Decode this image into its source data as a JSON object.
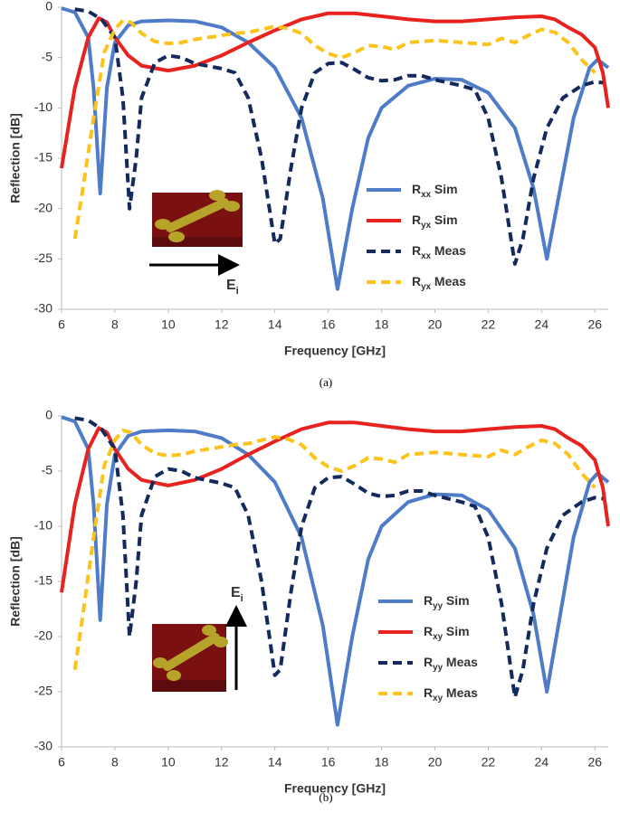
{
  "chart_data": [
    {
      "type": "line",
      "caption": "(a)",
      "x_label": "Frequency [GHz]",
      "y_label": "Reflection [dB]",
      "annotation": "Ei",
      "xlim": [
        6,
        26.5
      ],
      "xticks": [
        6,
        8,
        10,
        12,
        14,
        16,
        18,
        20,
        22,
        24,
        26
      ],
      "ylim": [
        -30,
        0
      ],
      "yticks": [
        0,
        -5,
        -10,
        -15,
        -20,
        -25,
        -30
      ],
      "legend": "center-right",
      "series": [
        {
          "name": "Rxx Sim",
          "color": "#4f7cc8",
          "dashed": false,
          "x": [
            6,
            6.5,
            7,
            7.2,
            7.45,
            7.7,
            8,
            8.5,
            9,
            10,
            11,
            12,
            13,
            14,
            15,
            15.8,
            16.35,
            16.9,
            17.5,
            18,
            19,
            20,
            21,
            22,
            23,
            23.7,
            24.2,
            24.7,
            25.2,
            25.8,
            26.1,
            26.5
          ],
          "values": [
            -0.1,
            -0.5,
            -3,
            -8,
            -18.5,
            -8,
            -3.5,
            -1.8,
            -1.4,
            -1.3,
            -1.4,
            -2,
            -3.5,
            -6,
            -11,
            -19,
            -28,
            -20,
            -13,
            -10,
            -7.8,
            -7.1,
            -7.2,
            -8.5,
            -12,
            -18,
            -25,
            -18,
            -11,
            -6,
            -5.2,
            -6
          ]
        },
        {
          "name": "Ryx Sim",
          "color": "#e8221e",
          "dashed": false,
          "x": [
            6,
            6.5,
            7,
            7.4,
            7.7,
            8,
            8.5,
            9,
            10,
            11,
            12,
            13,
            14,
            15,
            16,
            17,
            18,
            19,
            20,
            21,
            22,
            23,
            24,
            24.5,
            25,
            25.5,
            26,
            26.3,
            26.5
          ],
          "values": [
            -16,
            -8,
            -3,
            -1.1,
            -1.5,
            -3,
            -4.8,
            -5.8,
            -6.3,
            -5.8,
            -4.8,
            -3.5,
            -2.3,
            -1.2,
            -0.6,
            -0.6,
            -0.9,
            -1.2,
            -1.4,
            -1.4,
            -1.2,
            -1,
            -0.9,
            -1.2,
            -2,
            -2.7,
            -4,
            -6.5,
            -10
          ]
        },
        {
          "name": "Rxx Meas",
          "color": "#142a5c",
          "dashed": true,
          "x": [
            6.5,
            7,
            7.5,
            8,
            8.3,
            8.55,
            8.8,
            9,
            9.5,
            10,
            10.5,
            11,
            12,
            12.5,
            13,
            13.5,
            14,
            14.2,
            14.6,
            15,
            15.5,
            16,
            16.5,
            17,
            17.5,
            18,
            18.5,
            19,
            19.5,
            20,
            21,
            21.5,
            22,
            22.5,
            23,
            23.3,
            23.7,
            24.2,
            24.8,
            25.5,
            26,
            26.3
          ],
          "values": [
            -0.2,
            -0.4,
            -1.2,
            -3,
            -9,
            -20,
            -15,
            -9,
            -5.5,
            -4.8,
            -5,
            -5.6,
            -6.1,
            -6.5,
            -9,
            -15,
            -23.5,
            -23,
            -16,
            -10,
            -6.5,
            -5.6,
            -5.5,
            -6.2,
            -7,
            -7.3,
            -7.2,
            -6.8,
            -6.8,
            -7.2,
            -7.8,
            -8.2,
            -11,
            -17,
            -25.5,
            -23,
            -17,
            -12,
            -9,
            -7.8,
            -7.4,
            -7.5
          ]
        },
        {
          "name": "Ryx Meas",
          "color": "#fcc31a",
          "dashed": true,
          "x": [
            6.5,
            6.8,
            7.2,
            7.6,
            8,
            8.3,
            8.6,
            9,
            9.5,
            10,
            10.5,
            11,
            12,
            12.5,
            13,
            13.5,
            14,
            14.5,
            15,
            15.5,
            16,
            16.5,
            17,
            17.5,
            18,
            18.5,
            19,
            20,
            21,
            22,
            22.5,
            23,
            23.5,
            24,
            24.5,
            25,
            25.5,
            26
          ],
          "values": [
            -23,
            -18,
            -11,
            -4.5,
            -2.2,
            -1.3,
            -1.5,
            -2.6,
            -3.4,
            -3.6,
            -3.5,
            -3.2,
            -2.8,
            -2.6,
            -2.5,
            -2.2,
            -1.9,
            -2.1,
            -2.6,
            -3.8,
            -4.6,
            -5,
            -4.5,
            -3.8,
            -3.9,
            -4.2,
            -3.5,
            -3.3,
            -3.5,
            -3.7,
            -3.1,
            -3.5,
            -2.8,
            -2.2,
            -2.5,
            -3.5,
            -5.2,
            -6.5
          ]
        }
      ]
    },
    {
      "type": "line",
      "caption": "(b)",
      "x_label": "Frequency [GHz]",
      "y_label": "Reflection [dB]",
      "annotation": "Ei",
      "xlim": [
        6,
        26.5
      ],
      "xticks": [
        6,
        8,
        10,
        12,
        14,
        16,
        18,
        20,
        22,
        24,
        26
      ],
      "ylim": [
        -30,
        0
      ],
      "yticks": [
        0,
        -5,
        -10,
        -15,
        -20,
        -25,
        -30
      ],
      "legend": "center-right",
      "series": [
        {
          "name": "Ryy Sim",
          "color": "#4f7cc8",
          "dashed": false,
          "x": [
            6,
            6.5,
            7,
            7.2,
            7.45,
            7.7,
            8,
            8.5,
            9,
            10,
            11,
            12,
            13,
            14,
            15,
            15.8,
            16.35,
            16.9,
            17.5,
            18,
            19,
            20,
            21,
            22,
            23,
            23.7,
            24.2,
            24.7,
            25.2,
            25.8,
            26.1,
            26.5
          ],
          "values": [
            -0.1,
            -0.5,
            -3,
            -8,
            -18.5,
            -8,
            -3.5,
            -1.8,
            -1.4,
            -1.3,
            -1.4,
            -2,
            -3.5,
            -6,
            -11,
            -19,
            -28,
            -20,
            -13,
            -10,
            -7.8,
            -7.1,
            -7.2,
            -8.5,
            -12,
            -18,
            -25,
            -18,
            -11,
            -6,
            -5.2,
            -6
          ]
        },
        {
          "name": "Rxy Sim",
          "color": "#e8221e",
          "dashed": false,
          "x": [
            6,
            6.5,
            7,
            7.4,
            7.7,
            8,
            8.5,
            9,
            10,
            11,
            12,
            13,
            14,
            15,
            16,
            17,
            18,
            19,
            20,
            21,
            22,
            23,
            24,
            24.5,
            25,
            25.5,
            26,
            26.3,
            26.5
          ],
          "values": [
            -16,
            -8,
            -3,
            -1.1,
            -1.5,
            -3,
            -4.8,
            -5.8,
            -6.3,
            -5.8,
            -4.8,
            -3.5,
            -2.3,
            -1.2,
            -0.6,
            -0.6,
            -0.9,
            -1.2,
            -1.4,
            -1.4,
            -1.2,
            -1,
            -0.9,
            -1.2,
            -2,
            -2.7,
            -4,
            -6.5,
            -10
          ]
        },
        {
          "name": "Ryy Meas",
          "color": "#142a5c",
          "dashed": true,
          "x": [
            6.5,
            7,
            7.5,
            8,
            8.3,
            8.55,
            8.8,
            9,
            9.5,
            10,
            10.5,
            11,
            12,
            12.5,
            13,
            13.5,
            14,
            14.2,
            14.6,
            15,
            15.5,
            16,
            16.5,
            17,
            17.5,
            18,
            18.5,
            19,
            19.5,
            20,
            21,
            21.5,
            22,
            22.5,
            23,
            23.3,
            23.7,
            24.2,
            24.8,
            25.5,
            26,
            26.3
          ],
          "values": [
            -0.2,
            -0.4,
            -1.2,
            -3,
            -9,
            -20,
            -15,
            -9,
            -5.5,
            -4.8,
            -5,
            -5.6,
            -6.1,
            -6.5,
            -9,
            -15,
            -23.5,
            -23,
            -16,
            -10,
            -6.5,
            -5.6,
            -5.5,
            -6.2,
            -7,
            -7.3,
            -7.2,
            -6.8,
            -6.8,
            -7.2,
            -7.8,
            -8.2,
            -11,
            -17,
            -25.5,
            -23,
            -17,
            -12,
            -9,
            -7.8,
            -7.4,
            -7.5
          ]
        },
        {
          "name": "Rxy Meas",
          "color": "#fcc31a",
          "dashed": true,
          "x": [
            6.5,
            6.8,
            7.2,
            7.6,
            8,
            8.3,
            8.6,
            9,
            9.5,
            10,
            10.5,
            11,
            12,
            12.5,
            13,
            13.5,
            14,
            14.5,
            15,
            15.5,
            16,
            16.5,
            17,
            17.5,
            18,
            18.5,
            19,
            20,
            21,
            22,
            22.5,
            23,
            23.5,
            24,
            24.5,
            25,
            25.5,
            26
          ],
          "values": [
            -23,
            -18,
            -11,
            -4.5,
            -2.2,
            -1.3,
            -1.5,
            -2.6,
            -3.4,
            -3.6,
            -3.5,
            -3.2,
            -2.8,
            -2.6,
            -2.5,
            -2.2,
            -1.9,
            -2.1,
            -2.6,
            -3.8,
            -4.6,
            -5,
            -4.5,
            -3.8,
            -3.9,
            -4.2,
            -3.5,
            -3.3,
            -3.5,
            -3.7,
            -3.1,
            -3.5,
            -2.8,
            -2.2,
            -2.5,
            -3.5,
            -5.2,
            -6.5
          ]
        }
      ]
    }
  ]
}
